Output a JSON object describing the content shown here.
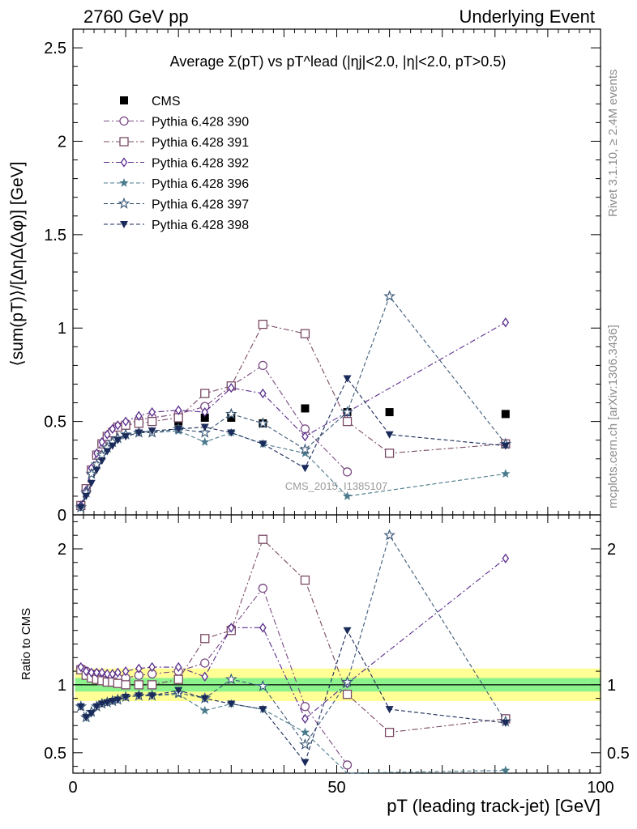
{
  "header": {
    "left": "2760 GeV pp",
    "right": "Underlying Event"
  },
  "side_labels": {
    "rivet": "Rivet 3.1.10, ≥ 2.4M events",
    "mcplots": "mcplots.cern.ch [arXiv:1306.3436]"
  },
  "watermark": "CMS_2015_I1385107",
  "chart_data": [
    {
      "type": "scatter",
      "panel": "main",
      "title": "Average Σ(pT) vs pT^lead (|ηj|<2.0, |η|<2.0, pT>0.5)",
      "ylabel": "⟨sum(pT)⟩/[ΔηΔ(Δφ)] [GeV]",
      "xlim": [
        0,
        100
      ],
      "ylim": [
        0,
        2.6
      ],
      "yticks": [
        0,
        0.5,
        1,
        1.5,
        2,
        2.5
      ],
      "x": [
        1.5,
        2.5,
        3.5,
        4.5,
        5.5,
        6.5,
        7.5,
        8.5,
        10,
        12.5,
        15,
        20,
        25,
        30,
        36,
        44,
        52,
        60,
        82
      ],
      "series": [
        {
          "name": "CMS",
          "marker": "square-filled",
          "color": "#000000",
          "values": [
            null,
            null,
            null,
            null,
            null,
            null,
            null,
            null,
            null,
            null,
            null,
            0.5,
            0.52,
            0.52,
            0.49,
            0.57,
            0.55,
            0.55,
            0.54
          ]
        },
        {
          "name": "Pythia 6.428 390",
          "marker": "circle-open",
          "color": "#7a4a82",
          "values": [
            0.05,
            0.13,
            0.24,
            0.32,
            0.38,
            0.42,
            0.45,
            0.47,
            0.48,
            0.51,
            0.52,
            0.54,
            0.58,
            0.69,
            0.8,
            0.46,
            0.23,
            null,
            null
          ]
        },
        {
          "name": "Pythia 6.428 391",
          "marker": "square-open",
          "color": "#7a4a66",
          "values": [
            0.05,
            0.14,
            0.24,
            0.32,
            0.38,
            0.42,
            0.44,
            0.47,
            0.48,
            0.49,
            0.5,
            0.52,
            0.65,
            0.69,
            1.02,
            0.97,
            0.5,
            0.33,
            0.38
          ]
        },
        {
          "name": "Pythia 6.428 392",
          "marker": "diamond-open",
          "color": "#5a2c8c",
          "values": [
            0.05,
            0.13,
            0.25,
            0.33,
            0.39,
            0.43,
            0.46,
            0.48,
            0.5,
            0.53,
            0.55,
            0.56,
            0.55,
            0.68,
            0.65,
            0.42,
            0.55,
            null,
            1.03
          ]
        },
        {
          "name": "Pythia 6.428 396",
          "marker": "star-filled",
          "color": "#4a7a8c",
          "values": [
            0.04,
            0.12,
            0.22,
            0.27,
            0.32,
            0.36,
            0.39,
            0.41,
            0.43,
            0.44,
            0.44,
            0.45,
            0.39,
            0.44,
            0.38,
            0.33,
            0.1,
            null,
            0.22
          ]
        },
        {
          "name": "Pythia 6.428 397",
          "marker": "star-open",
          "color": "#3c5a78",
          "values": [
            0.04,
            0.12,
            0.22,
            0.27,
            0.32,
            0.36,
            0.39,
            0.41,
            0.43,
            0.44,
            0.44,
            0.46,
            0.44,
            0.54,
            0.49,
            0.35,
            0.55,
            1.17,
            0.38
          ]
        },
        {
          "name": "Pythia 6.428 398",
          "marker": "triangle-down-filled",
          "color": "#1a2a5a",
          "values": [
            0.04,
            0.1,
            0.17,
            0.24,
            0.29,
            0.34,
            0.37,
            0.4,
            0.42,
            0.44,
            0.45,
            0.46,
            0.47,
            0.44,
            0.38,
            0.25,
            0.73,
            0.43,
            0.37
          ]
        }
      ]
    },
    {
      "type": "scatter",
      "panel": "ratio",
      "ylabel": "Ratio to CMS",
      "xlabel": "pT (leading track-jet) [GeV]",
      "xlim": [
        0,
        100
      ],
      "xticks": [
        0,
        50,
        100
      ],
      "ylim": [
        0.35,
        2.25
      ],
      "yticks": [
        0.5,
        1,
        2
      ],
      "band_1sigma": [
        0.95,
        1.05
      ],
      "band_2sigma": [
        0.88,
        1.12
      ],
      "x": [
        1.5,
        2.5,
        3.5,
        4.5,
        5.5,
        6.5,
        7.5,
        8.5,
        10,
        12.5,
        15,
        20,
        25,
        30,
        36,
        44,
        52,
        60,
        82
      ],
      "series": [
        {
          "name": "Pythia 6.428 390",
          "values": [
            1.12,
            1.1,
            1.08,
            1.08,
            1.07,
            1.06,
            1.06,
            1.05,
            1.05,
            1.07,
            1.08,
            1.1,
            1.16,
            1.41,
            1.71,
            0.84,
            0.41,
            null,
            null
          ]
        },
        {
          "name": "Pythia 6.428 391",
          "values": [
            1.11,
            1.07,
            1.05,
            1.04,
            1.03,
            1.02,
            1.02,
            1.01,
            1.0,
            1.0,
            1.0,
            1.04,
            1.34,
            1.4,
            2.07,
            1.77,
            0.93,
            0.65,
            0.75
          ]
        },
        {
          "name": "Pythia 6.428 392",
          "values": [
            1.13,
            1.1,
            1.09,
            1.09,
            1.09,
            1.08,
            1.08,
            1.09,
            1.1,
            1.12,
            1.13,
            1.13,
            1.06,
            1.42,
            1.42,
            0.75,
            1.01,
            null,
            1.93
          ]
        },
        {
          "name": "Pythia 6.428 396",
          "values": [
            0.84,
            0.76,
            0.8,
            0.84,
            0.86,
            0.87,
            0.88,
            0.89,
            0.91,
            0.92,
            0.92,
            0.93,
            0.81,
            0.86,
            0.82,
            0.65,
            0.28,
            null,
            0.37
          ]
        },
        {
          "name": "Pythia 6.428 397",
          "values": [
            0.84,
            0.76,
            0.8,
            0.84,
            0.86,
            0.87,
            0.88,
            0.89,
            0.91,
            0.92,
            0.92,
            0.94,
            0.9,
            1.04,
            0.99,
            0.56,
            1.02,
            2.1,
            0.73
          ]
        },
        {
          "name": "Pythia 6.428 398",
          "values": [
            0.84,
            0.76,
            0.79,
            0.84,
            0.86,
            0.87,
            0.88,
            0.89,
            0.91,
            0.92,
            0.92,
            0.96,
            0.9,
            0.86,
            0.82,
            0.43,
            1.4,
            0.82,
            0.72
          ]
        }
      ]
    }
  ]
}
